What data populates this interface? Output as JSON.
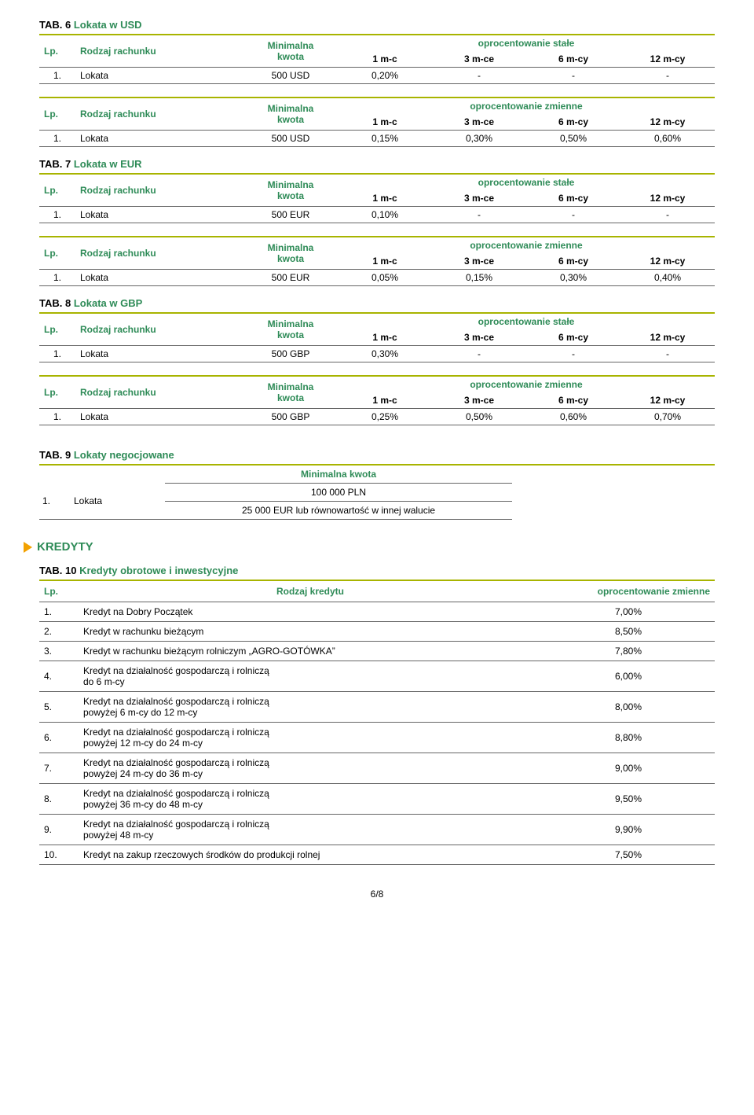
{
  "labels": {
    "lp": "Lp.",
    "rodzaj": "Rodzaj rachunku",
    "min": "Minimalna",
    "minLine2": "kwota",
    "minFull": "Minimalna kwota",
    "stale": "oprocentowanie stałe",
    "zmienne": "oprocentowanie zmienne",
    "p1": "1 m-c",
    "p3": "3 m-ce",
    "p6": "6 m-cy",
    "p12": "12 m-cy",
    "lokata": "Lokata",
    "one": "1.",
    "tab": "TAB.",
    "rodzKredytu": "Rodzaj kredytu",
    "pagenum": "6/8"
  },
  "tables": {
    "t6": {
      "num": "6",
      "title": "Lokata w USD",
      "stale": {
        "amt": "500 USD",
        "v": [
          "0,20%",
          "-",
          "-",
          "-"
        ]
      },
      "zmienne": {
        "amt": "500 USD",
        "v": [
          "0,15%",
          "0,30%",
          "0,50%",
          "0,60%"
        ]
      }
    },
    "t7": {
      "num": "7",
      "title": "Lokata w EUR",
      "stale": {
        "amt": "500 EUR",
        "v": [
          "0,10%",
          "-",
          "-",
          "-"
        ]
      },
      "zmienne": {
        "amt": "500 EUR",
        "v": [
          "0,05%",
          "0,15%",
          "0,30%",
          "0,40%"
        ]
      }
    },
    "t8": {
      "num": "8",
      "title": "Lokata w GBP",
      "stale": {
        "amt": "500 GBP",
        "v": [
          "0,30%",
          "-",
          "-",
          "-"
        ]
      },
      "zmienne": {
        "amt": "500 GBP",
        "v": [
          "0,25%",
          "0,50%",
          "0,60%",
          "0,70%"
        ]
      }
    },
    "t9": {
      "num": "9",
      "title": "Lokaty negocjowane",
      "r1": "100 000 PLN",
      "r2": "25 000 EUR lub równowartość w innej walucie"
    },
    "t10": {
      "num": "10",
      "title": "Kredyty obrotowe i inwestycyjne"
    }
  },
  "kredytySection": "KREDYTY",
  "kredyty": [
    {
      "lp": "1.",
      "desc": "Kredyt na Dobry Początek",
      "rate": "7,00%"
    },
    {
      "lp": "2.",
      "desc": "Kredyt w rachunku bieżącym",
      "rate": "8,50%"
    },
    {
      "lp": "3.",
      "desc": "Kredyt w rachunku bieżącym rolniczym „AGRO-GOTÓWKA”",
      "rate": "7,80%"
    },
    {
      "lp": "4.",
      "desc": "Kredyt na działalność gospodarczą i rolniczą\ndo 6 m-cy",
      "rate": "6,00%"
    },
    {
      "lp": "5.",
      "desc": "Kredyt na działalność gospodarczą i rolniczą\npowyżej 6 m-cy do 12 m-cy",
      "rate": "8,00%"
    },
    {
      "lp": "6.",
      "desc": "Kredyt na działalność gospodarczą i rolniczą\npowyżej 12 m-cy do 24 m-cy",
      "rate": "8,80%"
    },
    {
      "lp": "7.",
      "desc": "Kredyt na działalność gospodarczą i rolniczą\npowyżej 24 m-cy do 36 m-cy",
      "rate": "9,00%"
    },
    {
      "lp": "8.",
      "desc": "Kredyt na działalność gospodarczą i rolniczą\npowyżej 36 m-cy do 48 m-cy",
      "rate": "9,50%"
    },
    {
      "lp": "9.",
      "desc": "Kredyt na działalność gospodarczą i rolniczą\npowyżej 48 m-cy",
      "rate": "9,90%"
    },
    {
      "lp": "10.",
      "desc": "Kredyt na zakup rzeczowych środków do produkcji rolnej",
      "rate": "7,50%"
    }
  ],
  "colors": {
    "olive": "#a8b400",
    "green": "#2e8b57",
    "orange": "#f2a100"
  }
}
